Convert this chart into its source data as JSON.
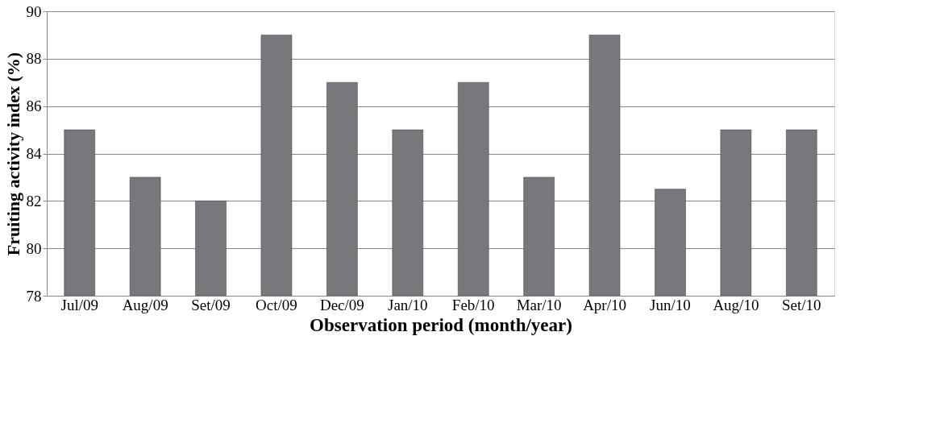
{
  "chart_data": {
    "type": "bar",
    "categories": [
      "Jul/09",
      "Aug/09",
      "Set/09",
      "Oct/09",
      "Dec/09",
      "Jan/10",
      "Feb/10",
      "Mar/10",
      "Apr/10",
      "Jun/10",
      "Aug/10",
      "Set/10"
    ],
    "values": [
      85,
      83,
      82,
      89,
      87,
      85,
      87,
      83,
      89,
      82.5,
      85,
      85
    ],
    "color": "#76787b",
    "xlabel": "Observation period (month/year)",
    "ylabel": "Fruiting activity index (%)",
    "ylim": [
      78,
      90
    ],
    "yticks": [
      78,
      80,
      82,
      84,
      86,
      88,
      90
    ],
    "grid": "y"
  }
}
